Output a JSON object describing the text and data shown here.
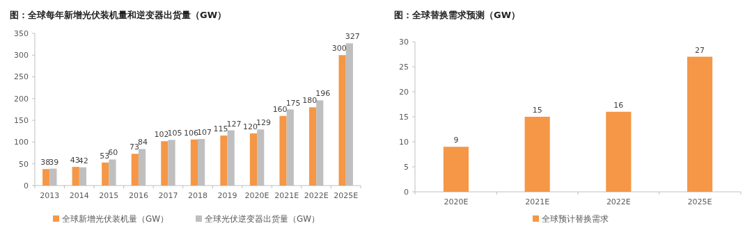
{
  "chart_data": [
    {
      "type": "bar",
      "title": "图：全球每年新增光伏装机量和逆变器出货量（GW）",
      "categories": [
        "2013",
        "2014",
        "2015",
        "2016",
        "2017",
        "2018",
        "2019",
        "2020E",
        "2021E",
        "2022E",
        "2025E"
      ],
      "series": [
        {
          "name": "全球新增光伏装机量（GW）",
          "color": "#f59746",
          "values": [
            38,
            43,
            53,
            73,
            102,
            106,
            115,
            120,
            160,
            180,
            300
          ]
        },
        {
          "name": "全球光伏逆变器出货量（GW）",
          "color": "#bfbfbf",
          "values": [
            39,
            42,
            60,
            84,
            105,
            107,
            127,
            129,
            175,
            196,
            327
          ]
        }
      ],
      "ylim": [
        0,
        350
      ],
      "yticks": [
        0,
        50,
        100,
        150,
        200,
        250,
        300,
        350
      ],
      "grid": false,
      "legend": "bottom",
      "data_labels": true
    },
    {
      "type": "bar",
      "title": "图：全球替换需求预测（GW）",
      "categories": [
        "2020E",
        "2021E",
        "2022E",
        "2025E"
      ],
      "series": [
        {
          "name": "全球预计替换需求",
          "color": "#f59746",
          "values": [
            9,
            15,
            16,
            27
          ]
        }
      ],
      "ylim": [
        0,
        30
      ],
      "yticks": [
        0,
        5,
        10,
        15,
        20,
        25,
        30
      ],
      "grid": false,
      "legend": "bottom",
      "data_labels": true
    }
  ]
}
